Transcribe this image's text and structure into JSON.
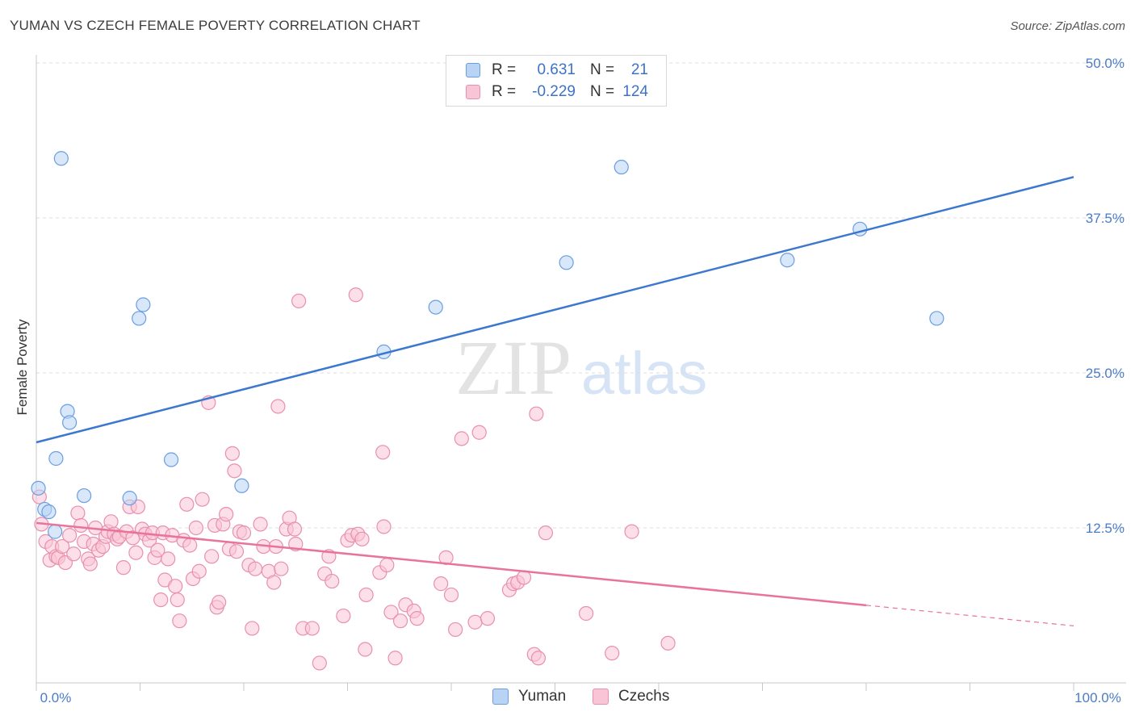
{
  "title": "YUMAN VS CZECH FEMALE POVERTY CORRELATION CHART",
  "source": "Source: ZipAtlas.com",
  "watermark": {
    "zip": "ZIP",
    "atlas": "atlas"
  },
  "legend": {
    "r_label": "R =",
    "n_label": "N =",
    "rows": [
      {
        "name": "Yuman",
        "r": "0.631",
        "n": "21",
        "fill": "#b8d3f4",
        "stroke": "#6b9ee0"
      },
      {
        "name": "Czechs",
        "r": "-0.229",
        "n": "124",
        "fill": "#f9c4d5",
        "stroke": "#e890ad"
      }
    ]
  },
  "chart_data": {
    "type": "scatter",
    "ylabel": "Female Poverty",
    "xlabel": "",
    "xlim": [
      0,
      100
    ],
    "ylim": [
      0,
      50
    ],
    "x_tick_labels": [
      "0.0%",
      "100.0%"
    ],
    "y_ticks": [
      12.5,
      25.0,
      37.5,
      50.0
    ],
    "y_tick_labels": [
      "12.5%",
      "25.0%",
      "37.5%",
      "50.0%"
    ],
    "grid": true,
    "legend_position": "bottom-center",
    "series": [
      {
        "name": "Yuman",
        "color": "#3c78d0",
        "fill": "#b8d3f4",
        "stroke": "#6b9ee0",
        "trend": {
          "x": [
            0,
            100
          ],
          "y": [
            19.4,
            40.8
          ],
          "dashed_from": null
        },
        "points": [
          [
            2.4,
            42.3
          ],
          [
            0.2,
            15.7
          ],
          [
            0.8,
            14.0
          ],
          [
            1.2,
            13.8
          ],
          [
            1.8,
            12.2
          ],
          [
            1.9,
            18.1
          ],
          [
            3.0,
            21.9
          ],
          [
            3.2,
            21.0
          ],
          [
            4.6,
            15.1
          ],
          [
            9.0,
            14.9
          ],
          [
            9.9,
            29.4
          ],
          [
            10.3,
            30.5
          ],
          [
            13.0,
            18.0
          ],
          [
            19.8,
            15.9
          ],
          [
            33.5,
            26.7
          ],
          [
            38.5,
            30.3
          ],
          [
            51.1,
            33.9
          ],
          [
            56.4,
            41.6
          ],
          [
            72.4,
            34.1
          ],
          [
            79.4,
            36.6
          ],
          [
            86.8,
            29.4
          ]
        ]
      },
      {
        "name": "Czechs",
        "color": "#e8739c",
        "fill": "#f9c4d5",
        "stroke": "#e890ad",
        "trend": {
          "x": [
            0,
            100
          ],
          "y": [
            12.9,
            4.6
          ],
          "dashed_from": 80
        },
        "points": [
          [
            0.3,
            15.0
          ],
          [
            0.5,
            12.8
          ],
          [
            0.9,
            11.4
          ],
          [
            1.3,
            9.9
          ],
          [
            1.5,
            11.0
          ],
          [
            1.9,
            10.2
          ],
          [
            2.1,
            10.1
          ],
          [
            2.5,
            11.0
          ],
          [
            2.8,
            9.7
          ],
          [
            3.2,
            11.9
          ],
          [
            3.6,
            10.4
          ],
          [
            4.0,
            13.7
          ],
          [
            4.3,
            12.7
          ],
          [
            4.6,
            11.4
          ],
          [
            5.0,
            10.0
          ],
          [
            5.2,
            9.6
          ],
          [
            5.5,
            11.2
          ],
          [
            5.7,
            12.5
          ],
          [
            6.0,
            10.7
          ],
          [
            6.4,
            11.0
          ],
          [
            6.7,
            11.8
          ],
          [
            6.9,
            12.2
          ],
          [
            7.2,
            13.0
          ],
          [
            7.5,
            12.0
          ],
          [
            7.8,
            11.6
          ],
          [
            8.0,
            11.8
          ],
          [
            8.4,
            9.3
          ],
          [
            8.7,
            12.2
          ],
          [
            9.0,
            14.2
          ],
          [
            9.3,
            11.7
          ],
          [
            9.6,
            10.5
          ],
          [
            9.8,
            14.2
          ],
          [
            10.2,
            12.4
          ],
          [
            10.5,
            12.0
          ],
          [
            10.9,
            11.5
          ],
          [
            11.2,
            12.1
          ],
          [
            11.4,
            10.1
          ],
          [
            11.7,
            10.7
          ],
          [
            12.0,
            6.7
          ],
          [
            12.2,
            12.1
          ],
          [
            12.4,
            8.3
          ],
          [
            12.7,
            10.0
          ],
          [
            13.1,
            11.9
          ],
          [
            13.4,
            7.8
          ],
          [
            13.6,
            6.7
          ],
          [
            13.8,
            5.0
          ],
          [
            14.2,
            11.5
          ],
          [
            14.5,
            14.4
          ],
          [
            14.8,
            11.1
          ],
          [
            15.1,
            8.4
          ],
          [
            15.4,
            12.5
          ],
          [
            15.7,
            9.0
          ],
          [
            16.0,
            14.8
          ],
          [
            16.6,
            22.6
          ],
          [
            16.9,
            10.2
          ],
          [
            17.2,
            12.7
          ],
          [
            17.4,
            6.1
          ],
          [
            17.6,
            6.5
          ],
          [
            18.0,
            12.8
          ],
          [
            18.3,
            13.6
          ],
          [
            18.6,
            10.8
          ],
          [
            18.9,
            18.5
          ],
          [
            19.1,
            17.1
          ],
          [
            19.3,
            10.6
          ],
          [
            19.6,
            12.2
          ],
          [
            20.0,
            12.1
          ],
          [
            20.5,
            9.5
          ],
          [
            20.8,
            4.4
          ],
          [
            21.1,
            9.2
          ],
          [
            21.6,
            12.8
          ],
          [
            21.9,
            11.0
          ],
          [
            22.4,
            9.0
          ],
          [
            22.9,
            8.1
          ],
          [
            23.1,
            11.0
          ],
          [
            23.3,
            22.3
          ],
          [
            23.6,
            9.2
          ],
          [
            24.1,
            12.4
          ],
          [
            24.4,
            13.3
          ],
          [
            24.9,
            12.4
          ],
          [
            25.0,
            11.2
          ],
          [
            25.3,
            30.8
          ],
          [
            25.7,
            4.4
          ],
          [
            26.6,
            4.4
          ],
          [
            27.3,
            1.6
          ],
          [
            27.8,
            8.8
          ],
          [
            28.2,
            10.2
          ],
          [
            28.5,
            8.2
          ],
          [
            29.6,
            5.4
          ],
          [
            30.0,
            11.5
          ],
          [
            30.4,
            11.9
          ],
          [
            30.8,
            31.3
          ],
          [
            31.0,
            12.0
          ],
          [
            31.4,
            11.6
          ],
          [
            31.7,
            2.7
          ],
          [
            31.8,
            7.1
          ],
          [
            33.1,
            8.9
          ],
          [
            33.4,
            18.6
          ],
          [
            33.5,
            12.6
          ],
          [
            33.8,
            9.5
          ],
          [
            34.2,
            5.7
          ],
          [
            34.6,
            2.0
          ],
          [
            35.1,
            5.0
          ],
          [
            35.6,
            6.3
          ],
          [
            36.4,
            5.8
          ],
          [
            36.7,
            5.2
          ],
          [
            39.0,
            8.0
          ],
          [
            39.5,
            10.1
          ],
          [
            40.0,
            7.1
          ],
          [
            40.4,
            4.3
          ],
          [
            41.0,
            19.7
          ],
          [
            42.3,
            4.9
          ],
          [
            42.7,
            20.2
          ],
          [
            43.5,
            5.2
          ],
          [
            45.6,
            7.5
          ],
          [
            46.0,
            8.0
          ],
          [
            46.4,
            8.1
          ],
          [
            47.0,
            8.5
          ],
          [
            48.0,
            2.3
          ],
          [
            48.2,
            21.7
          ],
          [
            48.4,
            2.0
          ],
          [
            49.1,
            12.1
          ],
          [
            53.0,
            5.6
          ],
          [
            55.5,
            2.4
          ],
          [
            57.4,
            12.2
          ],
          [
            60.9,
            3.2
          ]
        ]
      }
    ]
  }
}
